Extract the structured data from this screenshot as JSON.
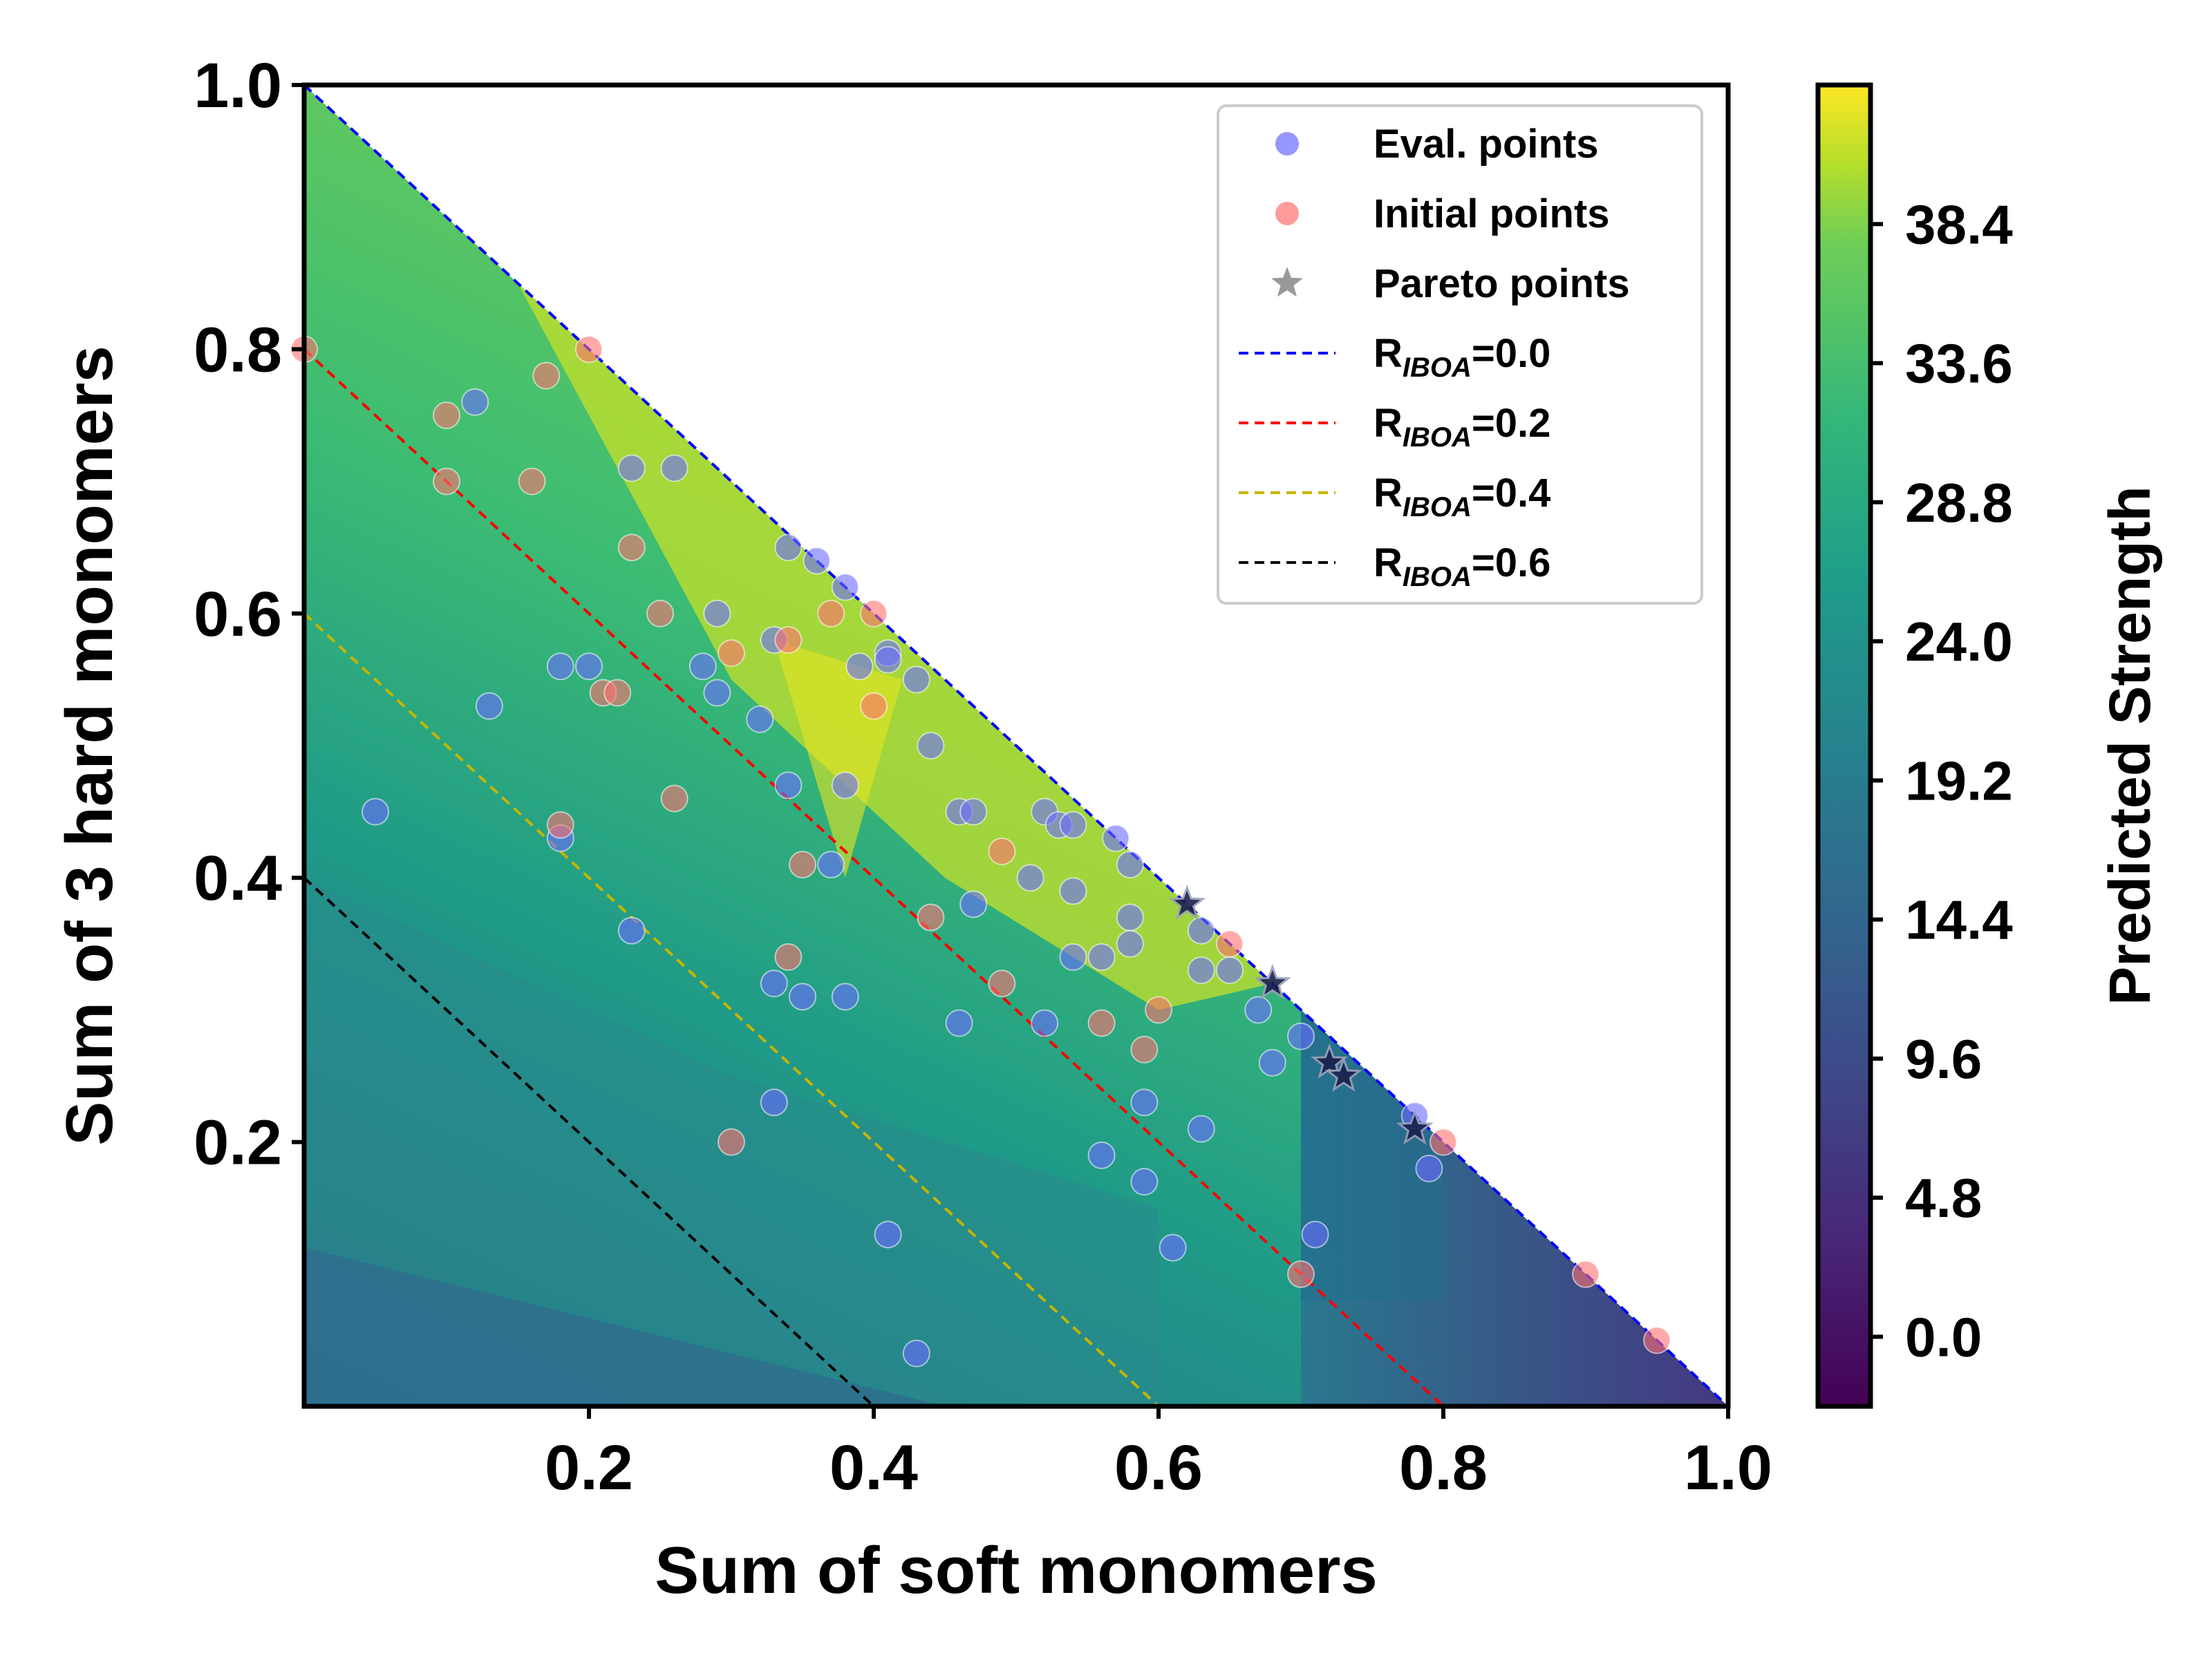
{
  "chart_data": {
    "type": "scatter",
    "xlabel": "Sum of soft monomers",
    "ylabel": "Sum of 3 hard monomers",
    "xlim": [
      0,
      1.0
    ],
    "ylim": [
      0,
      1.0
    ],
    "x_ticks": [
      "0.2",
      "0.4",
      "0.6",
      "0.8",
      "1.0"
    ],
    "y_ticks": [
      "0.2",
      "0.4",
      "0.6",
      "0.8",
      "1.0"
    ],
    "grid": false,
    "legend_placement": "top-right",
    "legend": [
      {
        "kind": "marker",
        "label": "Eval. points",
        "color": "#6b6bff"
      },
      {
        "kind": "marker",
        "label": "Initial points",
        "color": "#ff7070"
      },
      {
        "kind": "star",
        "label": "Pareto points",
        "color": "#808080"
      },
      {
        "kind": "line",
        "label": "R",
        "sub": "IBOA",
        "value": "=0.0",
        "color": "#0000ff"
      },
      {
        "kind": "line",
        "label": "R",
        "sub": "IBOA",
        "value": "=0.2",
        "color": "#ff0000"
      },
      {
        "kind": "line",
        "label": "R",
        "sub": "IBOA",
        "value": "=0.4",
        "color": "#c8b400"
      },
      {
        "kind": "line",
        "label": "R",
        "sub": "IBOA",
        "value": "=0.6",
        "color": "#000000"
      }
    ],
    "colorbar": {
      "label": "Predicted Strength",
      "colormap": "viridis",
      "range": [
        -2.4,
        43.2
      ],
      "ticks": [
        "0.0",
        "4.8",
        "9.6",
        "14.4",
        "19.2",
        "24.0",
        "28.8",
        "33.6",
        "38.4"
      ]
    },
    "reference_lines": [
      {
        "name": "R_IBOA=0.0",
        "x": [
          0,
          1.0
        ],
        "y": [
          1.0,
          0
        ],
        "color": "#0000ff"
      },
      {
        "name": "R_IBOA=0.2",
        "x": [
          0,
          0.8
        ],
        "y": [
          0.8,
          0
        ],
        "color": "#ff0000"
      },
      {
        "name": "R_IBOA=0.4",
        "x": [
          0,
          0.6
        ],
        "y": [
          0.6,
          0
        ],
        "color": "#c8b400"
      },
      {
        "name": "R_IBOA=0.6",
        "x": [
          0,
          0.4
        ],
        "y": [
          0.4,
          0
        ],
        "color": "#000000"
      }
    ],
    "series": [
      {
        "name": "Eval. points",
        "color": "#6b6bff",
        "points": [
          [
            0.12,
            0.76
          ],
          [
            0.18,
            0.56
          ],
          [
            0.2,
            0.56
          ],
          [
            0.23,
            0.71
          ],
          [
            0.26,
            0.71
          ],
          [
            0.29,
            0.6
          ],
          [
            0.28,
            0.56
          ],
          [
            0.29,
            0.54
          ],
          [
            0.32,
            0.52
          ],
          [
            0.33,
            0.58
          ],
          [
            0.34,
            0.65
          ],
          [
            0.36,
            0.64
          ],
          [
            0.38,
            0.62
          ],
          [
            0.41,
            0.57
          ],
          [
            0.41,
            0.565
          ],
          [
            0.43,
            0.55
          ],
          [
            0.39,
            0.56
          ],
          [
            0.44,
            0.5
          ],
          [
            0.34,
            0.47
          ],
          [
            0.38,
            0.47
          ],
          [
            0.37,
            0.41
          ],
          [
            0.46,
            0.45
          ],
          [
            0.47,
            0.45
          ],
          [
            0.47,
            0.38
          ],
          [
            0.51,
            0.4
          ],
          [
            0.52,
            0.45
          ],
          [
            0.53,
            0.44
          ],
          [
            0.54,
            0.44
          ],
          [
            0.54,
            0.39
          ],
          [
            0.57,
            0.43
          ],
          [
            0.58,
            0.41
          ],
          [
            0.58,
            0.37
          ],
          [
            0.58,
            0.35
          ],
          [
            0.54,
            0.34
          ],
          [
            0.56,
            0.34
          ],
          [
            0.63,
            0.36
          ],
          [
            0.63,
            0.33
          ],
          [
            0.65,
            0.33
          ],
          [
            0.67,
            0.3
          ],
          [
            0.68,
            0.26
          ],
          [
            0.7,
            0.28
          ],
          [
            0.13,
            0.53
          ],
          [
            0.18,
            0.43
          ],
          [
            0.23,
            0.36
          ],
          [
            0.33,
            0.32
          ],
          [
            0.35,
            0.31
          ],
          [
            0.38,
            0.31
          ],
          [
            0.46,
            0.29
          ],
          [
            0.52,
            0.29
          ],
          [
            0.59,
            0.23
          ],
          [
            0.33,
            0.23
          ],
          [
            0.56,
            0.19
          ],
          [
            0.59,
            0.17
          ],
          [
            0.63,
            0.21
          ],
          [
            0.61,
            0.12
          ],
          [
            0.41,
            0.13
          ],
          [
            0.43,
            0.04
          ],
          [
            0.71,
            0.13
          ],
          [
            0.78,
            0.22
          ],
          [
            0.79,
            0.18
          ],
          [
            0.05,
            0.45
          ]
        ]
      },
      {
        "name": "Initial points",
        "color": "#ff7070",
        "points": [
          [
            0.0,
            0.8
          ],
          [
            0.1,
            0.75
          ],
          [
            0.17,
            0.78
          ],
          [
            0.2,
            0.8
          ],
          [
            0.1,
            0.7
          ],
          [
            0.16,
            0.7
          ],
          [
            0.23,
            0.65
          ],
          [
            0.25,
            0.6
          ],
          [
            0.3,
            0.57
          ],
          [
            0.34,
            0.58
          ],
          [
            0.37,
            0.6
          ],
          [
            0.4,
            0.6
          ],
          [
            0.4,
            0.53
          ],
          [
            0.21,
            0.54
          ],
          [
            0.22,
            0.54
          ],
          [
            0.26,
            0.46
          ],
          [
            0.18,
            0.44
          ],
          [
            0.35,
            0.41
          ],
          [
            0.44,
            0.37
          ],
          [
            0.49,
            0.42
          ],
          [
            0.34,
            0.34
          ],
          [
            0.49,
            0.32
          ],
          [
            0.56,
            0.29
          ],
          [
            0.59,
            0.27
          ],
          [
            0.6,
            0.3
          ],
          [
            0.65,
            0.35
          ],
          [
            0.3,
            0.2
          ],
          [
            0.7,
            0.1
          ],
          [
            0.8,
            0.2
          ],
          [
            0.9,
            0.1
          ],
          [
            0.95,
            0.05
          ]
        ]
      },
      {
        "name": "Pareto points",
        "color": "#1a1f4d",
        "points": [
          [
            0.62,
            0.38
          ],
          [
            0.68,
            0.32
          ],
          [
            0.72,
            0.26
          ],
          [
            0.73,
            0.25
          ],
          [
            0.78,
            0.21
          ]
        ]
      }
    ]
  }
}
